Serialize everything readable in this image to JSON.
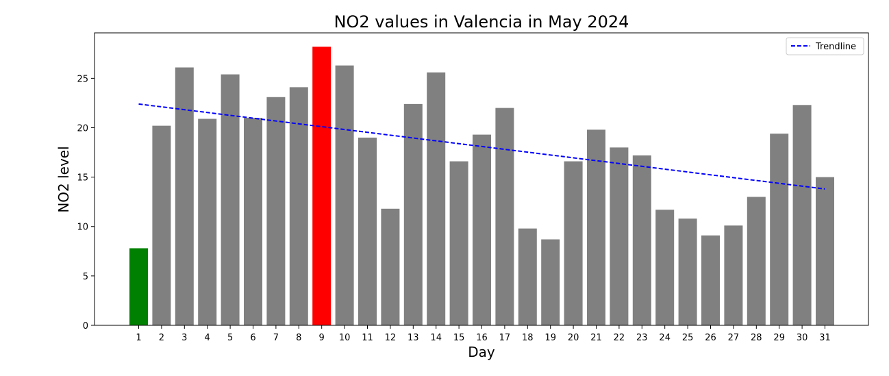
{
  "chart_data": {
    "type": "bar",
    "title": "NO2 values in Valencia in May 2024",
    "xlabel": "Day",
    "ylabel": "NO2 level",
    "categories": [
      "1",
      "2",
      "3",
      "4",
      "5",
      "6",
      "7",
      "8",
      "9",
      "10",
      "11",
      "12",
      "13",
      "14",
      "15",
      "16",
      "17",
      "18",
      "19",
      "20",
      "21",
      "22",
      "23",
      "24",
      "25",
      "26",
      "27",
      "28",
      "29",
      "30",
      "31"
    ],
    "values": [
      7.8,
      20.2,
      26.1,
      20.9,
      25.4,
      21.0,
      23.1,
      24.1,
      28.2,
      26.3,
      19.0,
      11.8,
      22.4,
      25.6,
      16.6,
      19.3,
      22.0,
      9.8,
      8.7,
      16.6,
      19.8,
      18.0,
      17.2,
      11.7,
      10.8,
      9.1,
      10.1,
      13.0,
      19.4,
      22.3,
      15.0
    ],
    "bar_colors": {
      "default": "#808080",
      "min": "#008000",
      "max": "#ff0000"
    },
    "min_day": "1",
    "max_day": "9",
    "trendline": {
      "name": "Trendline",
      "start_value": 22.4,
      "end_value": 13.8,
      "color": "#0000ff",
      "style": "dashed"
    },
    "ylim": [
      0,
      29.6
    ],
    "yticks": [
      0,
      5,
      10,
      15,
      20,
      25
    ],
    "legend_position": "upper-right",
    "grid": false
  }
}
